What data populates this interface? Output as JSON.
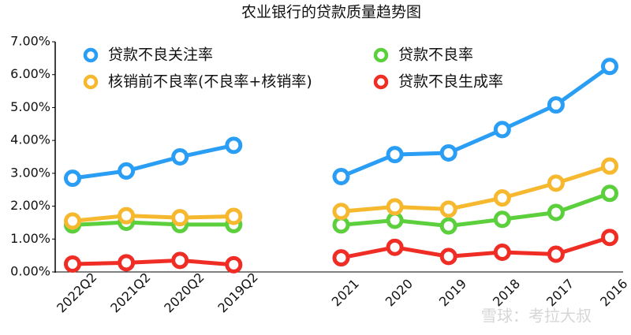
{
  "chart_data": {
    "type": "line",
    "title": "农业银行的贷款质量趋势图",
    "categories": [
      "2022Q2",
      "2021Q2",
      "2020Q2",
      "2019Q2",
      null,
      "2021",
      "2020",
      "2019",
      "2018",
      "2017",
      "2016"
    ],
    "series": [
      {
        "name": "贷款不良关注率",
        "color": "#2a9df4",
        "values": [
          2.85,
          3.07,
          3.5,
          3.85,
          null,
          2.9,
          3.57,
          3.62,
          4.33,
          5.08,
          6.25
        ]
      },
      {
        "name": "贷款不良率",
        "color": "#5ccf3c",
        "values": [
          1.43,
          1.51,
          1.44,
          1.44,
          null,
          1.43,
          1.57,
          1.4,
          1.6,
          1.81,
          2.39
        ]
      },
      {
        "name": "核销前不良率(不良率+核销率)",
        "color": "#f5b82e",
        "values": [
          1.55,
          1.71,
          1.65,
          1.69,
          null,
          1.84,
          1.98,
          1.91,
          2.25,
          2.7,
          3.22
        ]
      },
      {
        "name": "贷款不良生成率",
        "color": "#ef2d25",
        "values": [
          0.24,
          0.28,
          0.35,
          0.22,
          null,
          0.43,
          0.75,
          0.47,
          0.6,
          0.54,
          1.05
        ]
      }
    ],
    "ylim": [
      0,
      7
    ],
    "yticks": [
      {
        "value": 0,
        "label": "0.00%"
      },
      {
        "value": 1,
        "label": "1.00%"
      },
      {
        "value": 2,
        "label": "2.00%"
      },
      {
        "value": 3,
        "label": "3.00%"
      },
      {
        "value": 4,
        "label": "4.00%"
      },
      {
        "value": 5,
        "label": "5.00%"
      },
      {
        "value": 6,
        "label": "6.00%"
      },
      {
        "value": 7,
        "label": "7.00%"
      }
    ],
    "grid": false,
    "legend": "top",
    "watermark": "雪球：考拉大叔"
  }
}
